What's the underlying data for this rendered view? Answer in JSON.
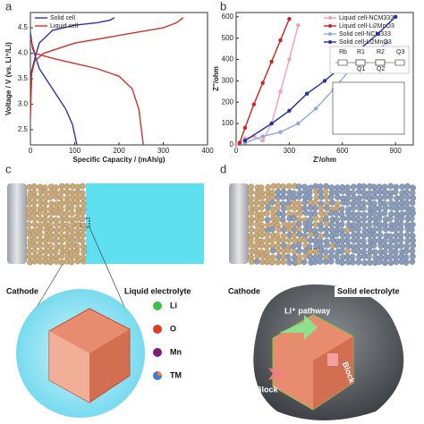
{
  "panel_labels": [
    "a",
    "b",
    "c",
    "d"
  ],
  "chart_data": [
    {
      "type": "line",
      "x_label": "Specific Capacity / (mAh/g)",
      "y_label": "Voltage / V (vs. Li⁺/Li)",
      "xlim": [
        0,
        400
      ],
      "xticks": [
        0,
        100,
        200,
        300,
        400
      ],
      "ylim": [
        2.2,
        4.8
      ],
      "yticks": [
        {
          "value": 2.5,
          "label": "2.5"
        },
        {
          "value": 3,
          "label": "3.0"
        },
        {
          "value": 3.5,
          "label": "3.5"
        },
        {
          "value": 4,
          "label": "4.0"
        },
        {
          "value": 4.5,
          "label": "4.5"
        }
      ],
      "legend": "upper left",
      "markers": false,
      "series": [
        {
          "name": "Solid cell",
          "color": "#2b35a8",
          "x": [
            0,
            10,
            20,
            50,
            100,
            150,
            180,
            190,
            null,
            0,
            5,
            20,
            50,
            80,
            95,
            105
          ],
          "values": [
            3.55,
            3.9,
            4.2,
            4.45,
            4.55,
            4.6,
            4.65,
            4.7,
            null,
            4.4,
            4.1,
            3.7,
            3.3,
            2.9,
            2.6,
            2.2
          ]
        },
        {
          "name": "Liquid cell",
          "color": "#d0342c",
          "x": [
            0,
            3,
            10,
            30,
            100,
            200,
            300,
            330,
            345,
            null,
            0,
            10,
            50,
            100,
            150,
            200,
            230,
            245,
            255
          ],
          "values": [
            2.75,
            3.6,
            3.85,
            4.0,
            4.2,
            4.35,
            4.5,
            4.6,
            4.7,
            null,
            4.3,
            4.0,
            3.9,
            3.8,
            3.7,
            3.55,
            3.3,
            2.9,
            2.2
          ]
        }
      ]
    },
    {
      "type": "line",
      "x_label": "Z'/ohm",
      "y_label": "Z''/ohm",
      "xlim": [
        0,
        1000
      ],
      "xticks": [
        0,
        300,
        600,
        900
      ],
      "ylim": [
        0,
        620
      ],
      "yticks": [
        0,
        100,
        200,
        300,
        400,
        500,
        600
      ],
      "legend": "upper right",
      "markers": true,
      "series": [
        {
          "name": "Liquid cell-NCM333",
          "color": "#f0a0b4",
          "x": [
            0,
            50,
            100,
            150,
            200,
            250,
            300,
            350
          ],
          "values": [
            0,
            30,
            40,
            20,
            100,
            250,
            400,
            560
          ]
        },
        {
          "name": "Liquid cell-Li2MnO3",
          "color": "#d42020",
          "x": [
            20,
            50,
            100,
            150,
            200,
            250,
            300
          ],
          "values": [
            10,
            80,
            190,
            290,
            390,
            490,
            590
          ]
        },
        {
          "name": "Solid cell-NCM333",
          "color": "#8fa8e0",
          "x": [
            50,
            150,
            250,
            350,
            450,
            550,
            650,
            750,
            850
          ],
          "values": [
            10,
            40,
            60,
            100,
            170,
            260,
            360,
            400,
            480
          ]
        },
        {
          "name": "Solid cell-Li2MnO3",
          "color": "#2233a0",
          "x": [
            50,
            200,
            300,
            400,
            500,
            600,
            700,
            800,
            900
          ],
          "values": [
            20,
            100,
            160,
            240,
            300,
            370,
            450,
            520,
            600
          ]
        }
      ]
    }
  ],
  "circuit": [
    "Rb",
    "R1",
    "R2",
    "Q3",
    "Q1",
    "Q2"
  ],
  "illustration_c": {
    "cathode": "Cathode",
    "electrolyte": "Liquid electrolyte",
    "elements": [
      "Li",
      "O",
      "Mn",
      "TM"
    ]
  },
  "illustration_d": {
    "cathode": "Cathode",
    "electrolyte": "Solid electrolyte",
    "pathway": "Li⁺ pathway",
    "block1": "Block",
    "block2": "Block"
  }
}
